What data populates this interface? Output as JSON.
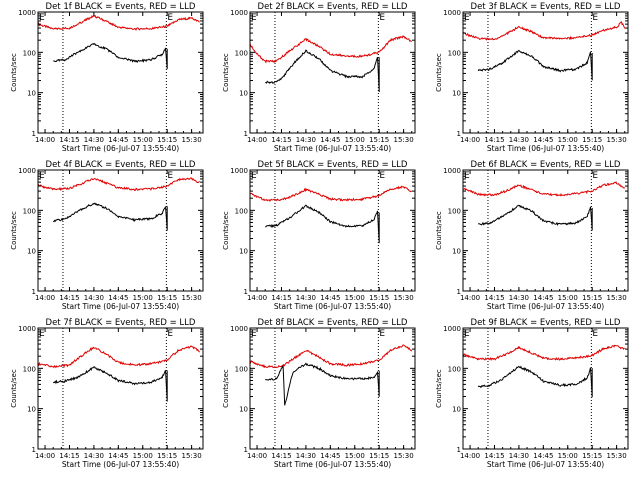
{
  "figure": {
    "xlabel": "Start Time (06-Jul-07 13:55:40)",
    "ylabel": "Counts/sec",
    "x_ticks": [
      "14:00",
      "14:15",
      "14:30",
      "14:45",
      "15:00",
      "15:15",
      "15:30"
    ],
    "y_ticks": [
      "1",
      "10",
      "100",
      "1000"
    ],
    "marker_label": "E",
    "colors": {
      "events": "#000000",
      "lld": "#e00000",
      "axes": "#000000",
      "background": "#ffffff"
    }
  },
  "chart_data": [
    {
      "type": "line",
      "title": "Det 1f BLACK = Events, RED = LLD",
      "xlim": [
        "13:55:40",
        "15:37:00"
      ],
      "ylim": [
        1,
        1000
      ],
      "yscale": "log",
      "markers": [
        "14:11:00",
        "15:14:30"
      ],
      "series": [
        {
          "color": "#e00000",
          "x": [
            "13:55:40",
            "14:05",
            "14:15",
            "14:22",
            "14:30",
            "14:38",
            "14:45",
            "14:55",
            "15:05",
            "15:15",
            "15:22",
            "15:30",
            "15:35"
          ],
          "values": [
            500,
            380,
            400,
            550,
            800,
            580,
            420,
            380,
            390,
            440,
            650,
            700,
            560
          ]
        },
        {
          "color": "#000000",
          "x": [
            "14:05",
            "14:12",
            "14:20",
            "14:30",
            "14:38",
            "14:45",
            "14:55",
            "15:05",
            "15:12",
            "15:14",
            "15:15",
            "15:15"
          ],
          "values": [
            60,
            65,
            100,
            160,
            120,
            75,
            60,
            65,
            90,
            130,
            40,
            120
          ]
        }
      ]
    },
    {
      "type": "line",
      "title": "Det 2f BLACK = Events, RED = LLD",
      "xlim": [
        "13:55:40",
        "15:37:00"
      ],
      "ylim": [
        1,
        1000
      ],
      "yscale": "log",
      "markers": [
        "14:11:00",
        "15:14:30"
      ],
      "series": [
        {
          "color": "#e00000",
          "x": [
            "13:55:40",
            "14:00",
            "14:05",
            "14:12",
            "14:20",
            "14:30",
            "14:38",
            "14:45",
            "14:55",
            "15:05",
            "15:15",
            "15:22",
            "15:30",
            "15:35"
          ],
          "values": [
            160,
            90,
            60,
            60,
            110,
            210,
            140,
            90,
            80,
            80,
            100,
            200,
            250,
            180
          ]
        },
        {
          "color": "#000000",
          "x": [
            "14:05",
            "14:10",
            "14:15",
            "14:22",
            "14:30",
            "14:38",
            "14:45",
            "14:55",
            "15:05",
            "15:12",
            "15:14",
            "15:15",
            "15:15"
          ],
          "values": [
            18,
            18,
            22,
            50,
            110,
            70,
            35,
            25,
            25,
            40,
            80,
            10,
            80
          ]
        }
      ]
    },
    {
      "type": "line",
      "title": "Det 3f BLACK = Events, RED = LLD",
      "xlim": [
        "13:55:40",
        "15:37:00"
      ],
      "ylim": [
        1,
        1000
      ],
      "yscale": "log",
      "markers": [
        "14:11:00",
        "15:14:30"
      ],
      "series": [
        {
          "color": "#e00000",
          "x": [
            "13:55:40",
            "14:05",
            "14:15",
            "14:22",
            "14:30",
            "14:38",
            "14:45",
            "14:55",
            "15:05",
            "15:15",
            "15:22",
            "15:30",
            "15:33",
            "15:35"
          ],
          "values": [
            300,
            220,
            210,
            280,
            430,
            320,
            230,
            220,
            230,
            270,
            350,
            420,
            560,
            380
          ]
        },
        {
          "color": "#000000",
          "x": [
            "14:05",
            "14:12",
            "14:20",
            "14:30",
            "14:38",
            "14:45",
            "14:55",
            "15:05",
            "15:12",
            "15:14",
            "15:15",
            "15:15"
          ],
          "values": [
            35,
            38,
            55,
            110,
            80,
            45,
            35,
            38,
            55,
            100,
            20,
            100
          ]
        }
      ]
    },
    {
      "type": "line",
      "title": "Det 4f BLACK = Events, RED = LLD",
      "xlim": [
        "13:55:40",
        "15:37:00"
      ],
      "ylim": [
        1,
        1000
      ],
      "yscale": "log",
      "markers": [
        "14:11:00",
        "15:14:30"
      ],
      "series": [
        {
          "color": "#e00000",
          "x": [
            "13:55:40",
            "14:05",
            "14:15",
            "14:22",
            "14:30",
            "14:38",
            "14:45",
            "14:55",
            "15:05",
            "15:15",
            "15:22",
            "15:30",
            "15:35"
          ],
          "values": [
            420,
            330,
            350,
            450,
            620,
            470,
            360,
            330,
            340,
            400,
            580,
            620,
            480
          ]
        },
        {
          "color": "#000000",
          "x": [
            "14:05",
            "14:12",
            "14:20",
            "14:30",
            "14:38",
            "14:45",
            "14:55",
            "15:05",
            "15:12",
            "15:14",
            "15:15",
            "15:15"
          ],
          "values": [
            55,
            60,
            95,
            150,
            110,
            70,
            58,
            62,
            85,
            130,
            30,
            120
          ]
        }
      ]
    },
    {
      "type": "line",
      "title": "Det 5f BLACK = Events, RED = LLD",
      "xlim": [
        "13:55:40",
        "15:37:00"
      ],
      "ylim": [
        1,
        1000
      ],
      "yscale": "log",
      "markers": [
        "14:11:00",
        "15:14:30"
      ],
      "series": [
        {
          "color": "#e00000",
          "x": [
            "13:55:40",
            "14:05",
            "14:15",
            "14:22",
            "14:30",
            "14:38",
            "14:45",
            "14:55",
            "15:05",
            "15:15",
            "15:22",
            "15:30",
            "15:35"
          ],
          "values": [
            260,
            180,
            180,
            230,
            330,
            250,
            190,
            180,
            190,
            230,
            340,
            380,
            290
          ]
        },
        {
          "color": "#000000",
          "x": [
            "14:05",
            "14:12",
            "14:20",
            "14:30",
            "14:38",
            "14:45",
            "14:55",
            "15:05",
            "15:12",
            "15:14",
            "15:15",
            "15:15"
          ],
          "values": [
            40,
            42,
            65,
            130,
            90,
            52,
            40,
            42,
            60,
            100,
            15,
            90
          ]
        }
      ]
    },
    {
      "type": "line",
      "title": "Det 6f BLACK = Events, RED = LLD",
      "xlim": [
        "13:55:40",
        "15:37:00"
      ],
      "ylim": [
        1,
        1000
      ],
      "yscale": "log",
      "markers": [
        "14:11:00",
        "15:14:30"
      ],
      "series": [
        {
          "color": "#e00000",
          "x": [
            "13:55:40",
            "14:05",
            "14:15",
            "14:22",
            "14:30",
            "14:38",
            "14:45",
            "14:55",
            "15:05",
            "15:15",
            "15:22",
            "15:30",
            "15:35"
          ],
          "values": [
            350,
            250,
            240,
            300,
            420,
            320,
            250,
            240,
            260,
            300,
            420,
            480,
            360
          ]
        },
        {
          "color": "#000000",
          "x": [
            "14:05",
            "14:12",
            "14:20",
            "14:30",
            "14:38",
            "14:45",
            "14:55",
            "15:05",
            "15:12",
            "15:14",
            "15:15",
            "15:15"
          ],
          "values": [
            45,
            48,
            70,
            130,
            95,
            55,
            45,
            48,
            70,
            120,
            30,
            110
          ]
        }
      ]
    },
    {
      "type": "line",
      "title": "Det 7f BLACK = Events, RED = LLD",
      "xlim": [
        "13:55:40",
        "15:37:00"
      ],
      "ylim": [
        1,
        1000
      ],
      "yscale": "log",
      "markers": [
        "14:11:00",
        "15:14:30"
      ],
      "series": [
        {
          "color": "#e00000",
          "x": [
            "13:55:40",
            "14:05",
            "14:15",
            "14:22",
            "14:30",
            "14:38",
            "14:45",
            "14:55",
            "15:05",
            "15:15",
            "15:22",
            "15:30",
            "15:35"
          ],
          "values": [
            130,
            110,
            120,
            200,
            330,
            220,
            140,
            120,
            130,
            160,
            280,
            350,
            260
          ]
        },
        {
          "color": "#000000",
          "x": [
            "14:05",
            "14:12",
            "14:20",
            "14:30",
            "14:38",
            "14:45",
            "14:55",
            "15:05",
            "15:12",
            "15:14",
            "15:15",
            "15:15"
          ],
          "values": [
            45,
            48,
            60,
            105,
            75,
            50,
            42,
            45,
            60,
            90,
            15,
            90
          ]
        }
      ]
    },
    {
      "type": "line",
      "title": "Det 8f BLACK = Events, RED = LLD",
      "xlim": [
        "13:55:40",
        "15:37:00"
      ],
      "ylim": [
        1,
        1000
      ],
      "yscale": "log",
      "markers": [
        "14:11:00",
        "15:14:30"
      ],
      "series": [
        {
          "color": "#e00000",
          "x": [
            "13:55:40",
            "14:05",
            "14:15",
            "14:22",
            "14:30",
            "14:38",
            "14:45",
            "14:55",
            "15:05",
            "15:15",
            "15:22",
            "15:30",
            "15:35"
          ],
          "values": [
            150,
            110,
            110,
            170,
            280,
            190,
            130,
            120,
            130,
            160,
            280,
            370,
            280
          ]
        },
        {
          "color": "#000000",
          "x": [
            "14:05",
            "14:12",
            "14:16",
            "14:17",
            "14:22",
            "14:30",
            "14:38",
            "14:45",
            "14:55",
            "15:05",
            "15:12",
            "15:14",
            "15:15",
            "15:15"
          ],
          "values": [
            50,
            55,
            120,
            12,
            80,
            130,
            100,
            65,
            55,
            55,
            60,
            80,
            20,
            90
          ]
        }
      ]
    },
    {
      "type": "line",
      "title": "Det 9f BLACK = Events, RED = LLD",
      "xlim": [
        "13:55:40",
        "15:37:00"
      ],
      "ylim": [
        1,
        1000
      ],
      "yscale": "log",
      "markers": [
        "14:11:00",
        "15:14:30"
      ],
      "series": [
        {
          "color": "#e00000",
          "x": [
            "13:55:40",
            "14:05",
            "14:15",
            "14:22",
            "14:30",
            "14:38",
            "14:45",
            "14:55",
            "15:05",
            "15:15",
            "15:22",
            "15:30",
            "15:35"
          ],
          "values": [
            220,
            170,
            170,
            220,
            330,
            240,
            180,
            170,
            180,
            210,
            310,
            370,
            290
          ]
        },
        {
          "color": "#000000",
          "x": [
            "14:05",
            "14:12",
            "14:20",
            "14:30",
            "14:38",
            "14:45",
            "14:55",
            "15:05",
            "15:12",
            "15:14",
            "15:15",
            "15:15"
          ],
          "values": [
            35,
            38,
            55,
            110,
            80,
            48,
            38,
            40,
            58,
            100,
            20,
            100
          ]
        }
      ]
    }
  ]
}
